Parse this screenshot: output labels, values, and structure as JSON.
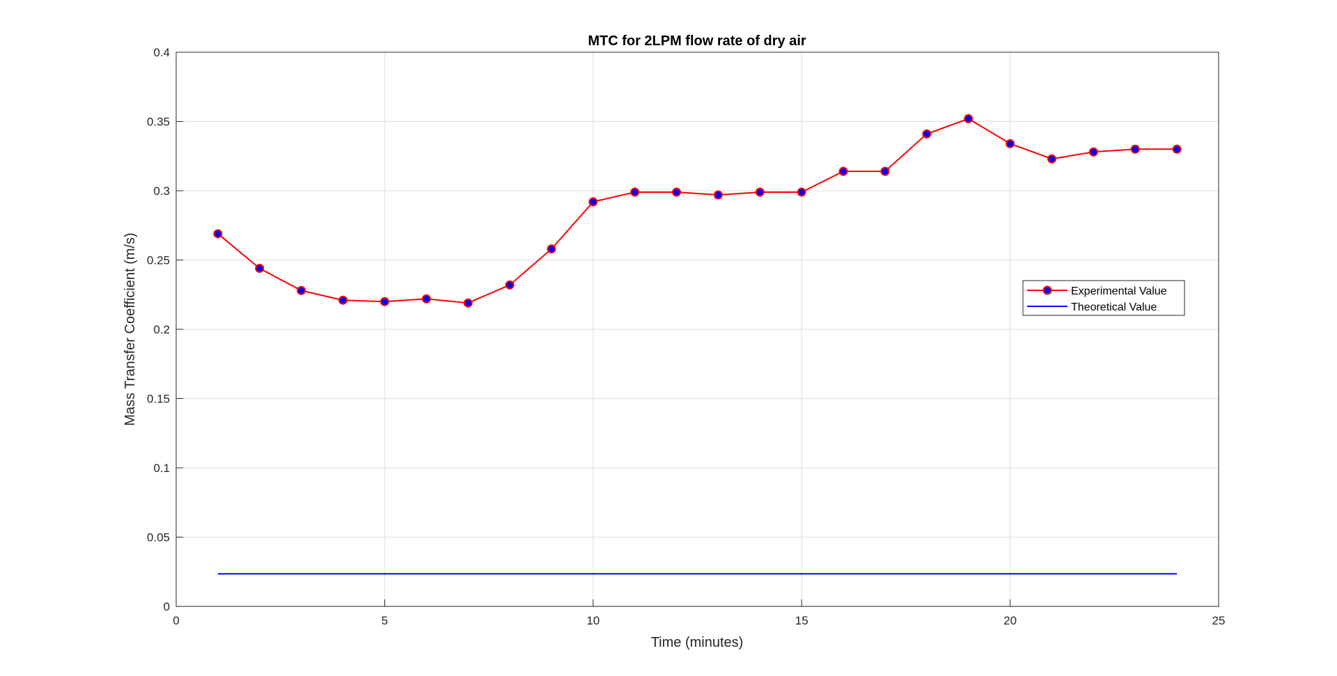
{
  "chart_data": {
    "type": "line",
    "title": "MTC for 2LPM flow rate of dry air",
    "xlabel": "Time (minutes)",
    "ylabel": "Mass Transfer Coefficient (m/s)",
    "xlim": [
      0,
      25
    ],
    "ylim": [
      0,
      0.4
    ],
    "x_ticks": [
      "0",
      "5",
      "10",
      "15",
      "20",
      "25"
    ],
    "y_ticks": [
      "0",
      "0.05",
      "0.1",
      "0.15",
      "0.2",
      "0.25",
      "0.3",
      "0.35",
      "0.4"
    ],
    "grid": true,
    "legend_position": "right",
    "series": [
      {
        "name": "Experimental Value",
        "color": "#ff0000",
        "marker_fill": "#0000ff",
        "marker": "circle",
        "x": [
          1,
          2,
          3,
          4,
          5,
          6,
          7,
          8,
          9,
          10,
          11,
          12,
          13,
          14,
          15,
          16,
          17,
          18,
          19,
          20,
          21,
          22,
          23,
          24
        ],
        "y": [
          0.269,
          0.244,
          0.228,
          0.221,
          0.22,
          0.222,
          0.219,
          0.232,
          0.258,
          0.292,
          0.299,
          0.299,
          0.297,
          0.299,
          0.299,
          0.314,
          0.314,
          0.341,
          0.352,
          0.334,
          0.323,
          0.328,
          0.33,
          0.33
        ]
      },
      {
        "name": "Theoretical Value",
        "color": "#0000ff",
        "marker": "none",
        "x": [
          1,
          24
        ],
        "y": [
          0.0235,
          0.0235
        ]
      }
    ]
  }
}
